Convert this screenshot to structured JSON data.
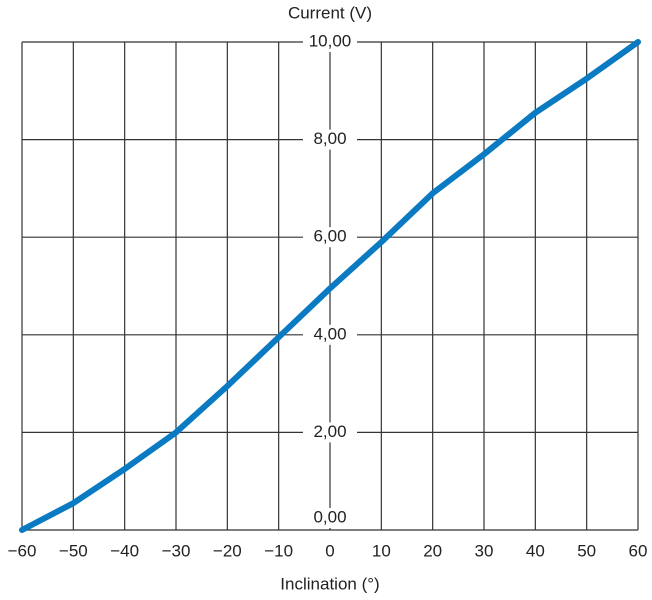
{
  "chart_data": {
    "type": "line",
    "y_label": "Current (V)",
    "x_label": "Inclination (°)",
    "x": [
      -60,
      -50,
      -40,
      -30,
      -20,
      -10,
      0,
      10,
      20,
      30,
      40,
      50,
      60
    ],
    "series": [
      {
        "color": "#0a7ac2",
        "values": [
          0,
          0.55,
          1.25,
          2.0,
          2.95,
          3.95,
          4.95,
          5.9,
          6.9,
          7.7,
          8.55,
          9.25,
          10
        ]
      }
    ],
    "xlim": [
      -60,
      60
    ],
    "ylim": [
      0,
      10
    ],
    "xticks": [
      {
        "value": -60,
        "label": "−60"
      },
      {
        "value": -50,
        "label": "−50"
      },
      {
        "value": -40,
        "label": "−40"
      },
      {
        "value": -30,
        "label": "−30"
      },
      {
        "value": -20,
        "label": "−20"
      },
      {
        "value": -10,
        "label": "−10"
      },
      0,
      10,
      20,
      30,
      40,
      50,
      60
    ],
    "yticks": [
      {
        "value": 0,
        "label": "0,00"
      },
      {
        "value": 2,
        "label": "2,00"
      },
      {
        "value": 4,
        "label": "4,00"
      },
      {
        "value": 6,
        "label": "6,00"
      },
      {
        "value": 8,
        "label": "8,00"
      },
      {
        "value": 10,
        "label": "10,00"
      }
    ],
    "grid": true
  }
}
